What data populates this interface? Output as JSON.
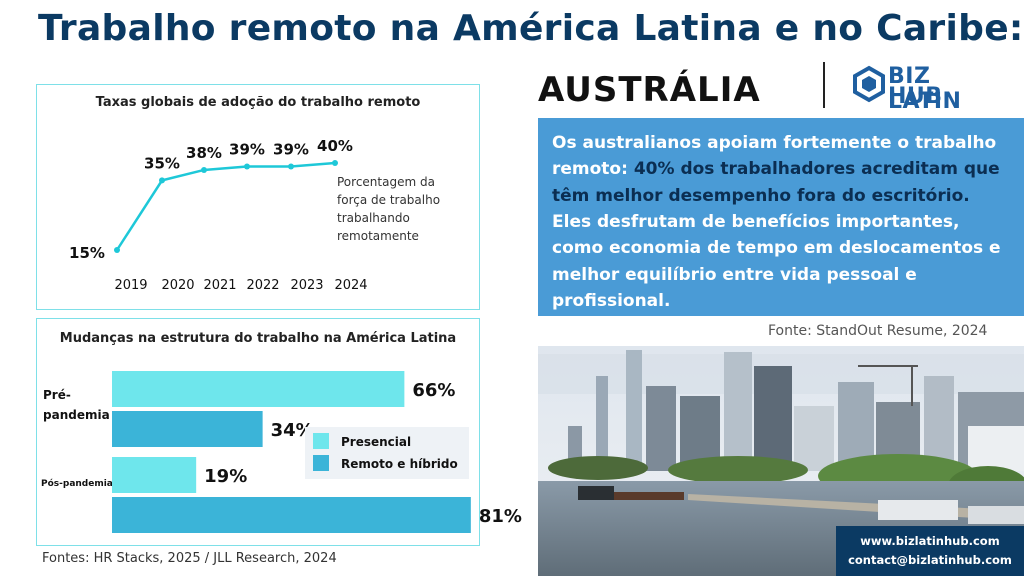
{
  "title": "Trabalho remoto na América Latina e no Caribe:",
  "chart1": {
    "title": "Taxas globais de adoção do trabalho remoto",
    "note_lines": [
      "Porcentagem da",
      "força de trabalho",
      "trabalhando",
      "remotamente"
    ]
  },
  "chart2": {
    "title": "Mudanças na estrutura do trabalho na América Latina",
    "legend": [
      "Presencial",
      "Remoto e híbrido"
    ]
  },
  "sources": "Fontes: HR Stacks, 2025 / JLL Research, 2024",
  "country": "AUSTRÁLIA",
  "logo": {
    "line1": "BIZ LATIN",
    "line2": "HUB"
  },
  "blue_box": {
    "part1": "Os australianos apoiam fortemente o trabalho remoto: ",
    "highlight": "40% dos trabalhadores acreditam que têm melhor desempenho fora do escritório.",
    "part2": " Eles desfrutam de benefícios importantes, como economia de tempo em deslocamentos e melhor equilíbrio entre vida pessoal e profissional."
  },
  "fonte": "Fonte: StandOut Resume, 2024",
  "contact": {
    "website": "www.bizlatinhub.com",
    "email": "contact@bizlatinhub.com"
  },
  "colors": {
    "navy": "#0b3a63",
    "cyan": "#1ec8d8",
    "presencial": "#6ee6ec",
    "remoto": "#3bb4d8",
    "blue_box": "#4a9bd6"
  },
  "chart_data": [
    {
      "type": "line",
      "title": "Taxas globais de adoção do trabalho remoto",
      "x": [
        "2019",
        "2020",
        "2021",
        "2022",
        "2023",
        "2024"
      ],
      "series": [
        {
          "values": [
            15,
            35,
            38,
            39,
            39,
            40
          ]
        }
      ],
      "value_labels": [
        "15%",
        "35%",
        "38%",
        "39%",
        "39%",
        "40%"
      ],
      "ylim": [
        15,
        40
      ],
      "grid": false
    },
    {
      "type": "bar",
      "orientation": "horizontal",
      "title": "Mudanças na estrutura do trabalho na América Latina",
      "categories": [
        "Pré-pandemia",
        "Pós-pandemia"
      ],
      "series": [
        {
          "name": "Presencial",
          "values": [
            66,
            19
          ]
        },
        {
          "name": "Remoto e híbrido",
          "values": [
            34,
            81
          ]
        }
      ],
      "value_labels": [
        [
          "66%",
          "34%"
        ],
        [
          "19%",
          "81%"
        ]
      ],
      "xlim": [
        0,
        100
      ],
      "legend": "right"
    }
  ]
}
